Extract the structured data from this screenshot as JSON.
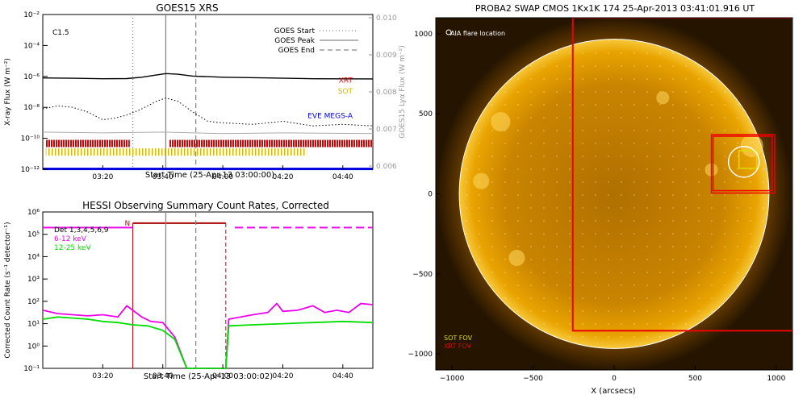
{
  "chart_data": [
    {
      "type": "line",
      "title": "GOES15 XRS",
      "xlabel": "Start Time (25-Apr-13 03:00:00)",
      "ylabel": "X-ray Flux (W m⁻²)",
      "ylabel_right": "GOES15 Lyα Flux (W m⁻²)",
      "xlim_minutes": [
        0,
        110
      ],
      "x_ticks": [
        "03:20",
        "03:40",
        "04:00",
        "04:20",
        "04:40"
      ],
      "x_tick_minutes": [
        20,
        40,
        60,
        80,
        100
      ],
      "ylim_log10": [
        -12,
        -2
      ],
      "y_ticks": [
        "10⁻²",
        "10⁻⁴",
        "10⁻⁶",
        "10⁻⁸",
        "10⁻¹⁰",
        "10⁻¹²"
      ],
      "y_tick_log10": [
        -2,
        -4,
        -6,
        -8,
        -10,
        -12
      ],
      "y2_ticks": [
        "0.010",
        "0.009",
        "0.008",
        "0.007",
        "0.006"
      ],
      "flare_class": "C1.5",
      "event_lines": [
        {
          "name": "GOES Start",
          "minute": 30,
          "style": "dotted"
        },
        {
          "name": "GOES Peak",
          "minute": 41,
          "style": "solid"
        },
        {
          "name": "GOES End",
          "minute": 51,
          "style": "dashed"
        }
      ],
      "instrument_labels": [
        {
          "name": "XRT",
          "color": "#dd0000"
        },
        {
          "name": "SOT",
          "color": "#d4b800"
        },
        {
          "name": "EVE MEGS-A",
          "color": "#0000dd"
        }
      ],
      "series": [
        {
          "name": "long",
          "color": "#000000",
          "points": [
            [
              0,
              -6.1
            ],
            [
              10,
              -6.12
            ],
            [
              20,
              -6.15
            ],
            [
              28,
              -6.14
            ],
            [
              33,
              -6.05
            ],
            [
              38,
              -5.9
            ],
            [
              41,
              -5.82
            ],
            [
              45,
              -5.86
            ],
            [
              50,
              -5.98
            ],
            [
              60,
              -6.05
            ],
            [
              75,
              -6.1
            ],
            [
              90,
              -6.15
            ],
            [
              110,
              -6.16
            ]
          ]
        },
        {
          "name": "short",
          "color": "#000000",
          "points": [
            [
              0,
              -8.1
            ],
            [
              5,
              -7.9
            ],
            [
              10,
              -8.0
            ],
            [
              15,
              -8.3
            ],
            [
              20,
              -8.8
            ],
            [
              24,
              -8.7
            ],
            [
              28,
              -8.5
            ],
            [
              33,
              -8.1
            ],
            [
              38,
              -7.6
            ],
            [
              41,
              -7.4
            ],
            [
              45,
              -7.6
            ],
            [
              50,
              -8.3
            ],
            [
              55,
              -8.9
            ],
            [
              60,
              -9.0
            ],
            [
              70,
              -9.1
            ],
            [
              80,
              -8.9
            ],
            [
              90,
              -9.2
            ],
            [
              100,
              -9.1
            ],
            [
              110,
              -9.2
            ]
          ]
        },
        {
          "name": "lya",
          "color": "#aaaaaa",
          "points": [
            [
              0,
              -9.6
            ],
            [
              20,
              -9.65
            ],
            [
              40,
              -9.6
            ],
            [
              60,
              -9.7
            ],
            [
              80,
              -9.65
            ],
            [
              110,
              -9.7
            ]
          ]
        }
      ],
      "xrt_ranges_minutes": [
        [
          1,
          29
        ],
        [
          42,
          110
        ]
      ],
      "sot_ranges_minutes": [
        [
          1,
          88
        ]
      ],
      "eve_range_minutes": [
        0,
        110
      ]
    },
    {
      "type": "line",
      "title": "HESSI Observing Summary Count Rates, Corrected",
      "xlabel": "Start Time (25-Apr-13 03:00:02)",
      "ylabel": "Corrected Count Rate (s⁻¹ detector⁻¹)",
      "xlim_minutes": [
        0,
        110
      ],
      "x_ticks": [
        "03:20",
        "03:40",
        "04:00",
        "04:20",
        "04:40"
      ],
      "x_tick_minutes": [
        20,
        40,
        60,
        80,
        100
      ],
      "ylim_log10": [
        -1,
        6
      ],
      "y_ticks": [
        "10⁶",
        "10⁵",
        "10⁴",
        "10³",
        "10²",
        "10¹",
        "10⁰",
        "10⁻¹"
      ],
      "y_tick_log10": [
        6,
        5,
        4,
        3,
        2,
        1,
        0,
        -1
      ],
      "legend": [
        {
          "name": "Det 1,3,4,5,6,9",
          "color": "#000000"
        },
        {
          "name": "6-12 keV",
          "color": "#ee00ee"
        },
        {
          "name": "12-25 keV",
          "color": "#00dd00"
        }
      ],
      "night_label": "N",
      "night_range_minutes": [
        30,
        61
      ],
      "event_lines": [
        {
          "name": "GOES Peak",
          "minute": 41,
          "style": "solid"
        },
        {
          "name": "GOES End",
          "minute": 51,
          "style": "dashed"
        }
      ],
      "series": [
        {
          "name": "6-12 keV",
          "color": "#ee00ee",
          "points": [
            [
              0,
              1.6
            ],
            [
              5,
              1.45
            ],
            [
              10,
              1.4
            ],
            [
              15,
              1.35
            ],
            [
              20,
              1.4
            ],
            [
              25,
              1.3
            ],
            [
              28,
              1.8
            ],
            [
              30,
              1.6
            ],
            [
              33,
              1.3
            ],
            [
              36,
              1.1
            ],
            [
              40,
              1.05
            ],
            [
              44,
              0.4
            ],
            [
              48,
              -1
            ],
            [
              55,
              -1
            ],
            [
              61,
              -1
            ],
            [
              62,
              1.2
            ],
            [
              66,
              1.3
            ],
            [
              70,
              1.4
            ],
            [
              75,
              1.5
            ],
            [
              78,
              1.9
            ],
            [
              80,
              1.55
            ],
            [
              85,
              1.6
            ],
            [
              90,
              1.8
            ],
            [
              94,
              1.5
            ],
            [
              98,
              1.6
            ],
            [
              102,
              1.5
            ],
            [
              106,
              1.9
            ],
            [
              110,
              1.85
            ]
          ]
        },
        {
          "name": "12-25 keV",
          "color": "#00dd00",
          "points": [
            [
              0,
              1.2
            ],
            [
              5,
              1.3
            ],
            [
              10,
              1.25
            ],
            [
              15,
              1.2
            ],
            [
              20,
              1.1
            ],
            [
              25,
              1.05
            ],
            [
              30,
              0.95
            ],
            [
              35,
              0.9
            ],
            [
              40,
              0.7
            ],
            [
              44,
              0.3
            ],
            [
              48,
              -1
            ],
            [
              55,
              -1
            ],
            [
              61,
              -1
            ],
            [
              62,
              0.9
            ],
            [
              70,
              0.95
            ],
            [
              80,
              1.0
            ],
            [
              90,
              1.05
            ],
            [
              100,
              1.1
            ],
            [
              110,
              1.05
            ]
          ]
        }
      ]
    },
    {
      "type": "scatter",
      "title": "PROBA2 SWAP CMOS 1Kx1K 174 25-Apr-2013 03:41:01.916 UT",
      "xlabel": "X (arcsecs)",
      "ylabel": "",
      "xlim": [
        -1100,
        1100
      ],
      "ylim": [
        -1100,
        1100
      ],
      "x_ticks": [
        -1000,
        -500,
        0,
        500,
        1000
      ],
      "y_ticks": [
        -1000,
        -500,
        0,
        500,
        1000
      ],
      "x_tick_labels": [
        "−1000",
        "−500",
        "0",
        "500",
        "1000"
      ],
      "y_tick_labels": [
        "−1000",
        "−500",
        "0",
        "500",
        "1000"
      ],
      "solar_radius": 955,
      "aia_label": "AIA flare location",
      "aia_flare": {
        "x": 800,
        "y": 200,
        "r": 95
      },
      "sot_label": "SOT FOV",
      "xrt_label": "XRT FOV",
      "xrt_fov": {
        "x0": -255,
        "x1": 1100,
        "y0": -855,
        "y1": 1100
      },
      "xrt_small_fovs": [
        {
          "x0": 600,
          "x1": 990,
          "y0": 5,
          "y1": 370
        },
        {
          "x0": 610,
          "x1": 975,
          "y0": 20,
          "y1": 360
        }
      ],
      "sot_fov": {
        "x0": 770,
        "x1": 880,
        "y0": 160,
        "y1": 270
      },
      "colors": {
        "xrt": "#ee0000",
        "sot": "#dddd00",
        "sun": "#e9a400",
        "bg": "#241400"
      }
    }
  ]
}
